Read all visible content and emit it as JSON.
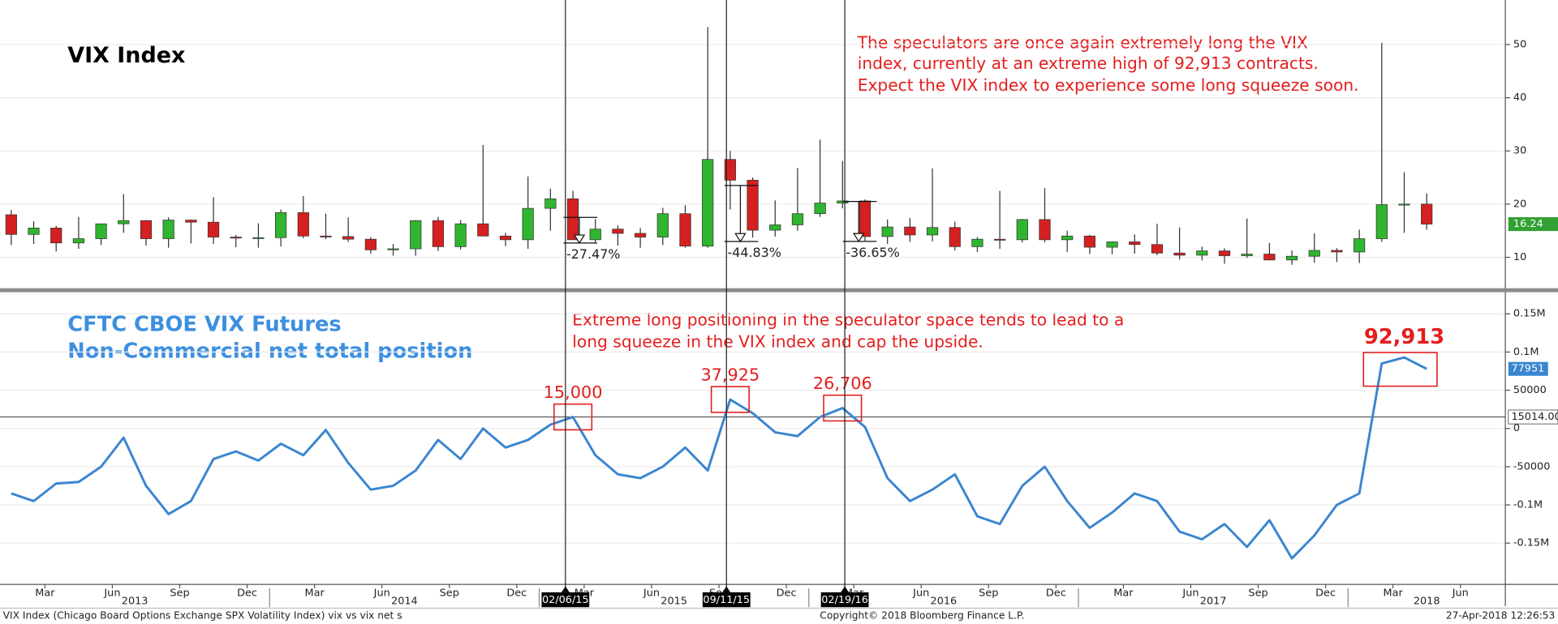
{
  "chart_data": [
    {
      "type": "candlestick",
      "title": "VIX Index",
      "annotation": [
        "The speculators are once again extremely long the VIX",
        "index, currently at an extreme high of 92,913 contracts.",
        "Expect the VIX index to experience some long squeeze soon."
      ],
      "x": [
        "2013-01",
        "2013-02",
        "2013-03",
        "2013-04",
        "2013-05",
        "2013-06",
        "2013-07",
        "2013-08",
        "2013-09",
        "2013-10",
        "2013-11",
        "2013-12",
        "2014-01",
        "2014-02",
        "2014-03",
        "2014-04",
        "2014-05",
        "2014-06",
        "2014-07",
        "2014-08",
        "2014-09",
        "2014-10",
        "2014-11",
        "2014-12",
        "2015-01",
        "2015-02",
        "2015-03",
        "2015-04",
        "2015-05",
        "2015-06",
        "2015-07",
        "2015-08",
        "2015-09",
        "2015-10",
        "2015-11",
        "2015-12",
        "2016-01",
        "2016-02",
        "2016-03",
        "2016-04",
        "2016-05",
        "2016-06",
        "2016-07",
        "2016-08",
        "2016-09",
        "2016-10",
        "2016-11",
        "2016-12",
        "2017-01",
        "2017-02",
        "2017-03",
        "2017-04",
        "2017-05",
        "2017-06",
        "2017-07",
        "2017-08",
        "2017-09",
        "2017-10",
        "2017-11",
        "2017-12",
        "2018-01",
        "2018-02",
        "2018-03",
        "2018-04"
      ],
      "open": [
        18.0,
        14.3,
        15.5,
        12.7,
        13.5,
        16.3,
        16.9,
        13.5,
        17.0,
        16.6,
        13.8,
        13.7,
        13.7,
        18.4,
        14.0,
        13.9,
        13.4,
        11.4,
        11.6,
        16.9,
        12.0,
        16.3,
        14.0,
        13.3,
        19.2,
        21.0,
        13.3,
        15.3,
        14.5,
        13.8,
        18.2,
        12.1,
        28.4,
        24.5,
        15.1,
        16.1,
        18.2,
        20.2,
        20.6,
        13.9,
        15.7,
        14.2,
        15.6,
        12.0,
        13.4,
        13.3,
        17.1,
        13.3,
        14.0,
        11.9,
        12.9,
        12.4,
        10.8,
        10.4,
        11.2,
        10.3,
        10.6,
        9.5,
        10.2,
        11.3,
        11.0,
        13.5,
        19.9,
        20.0
      ],
      "high": [
        18.9,
        16.8,
        15.9,
        17.6,
        16.3,
        21.9,
        17.0,
        17.5,
        17.1,
        21.3,
        14.2,
        16.4,
        19.0,
        21.5,
        18.2,
        17.5,
        13.8,
        12.5,
        17.0,
        17.6,
        17.0,
        31.1,
        14.6,
        25.2,
        22.9,
        22.5,
        17.2,
        16.0,
        15.5,
        19.3,
        19.8,
        53.3,
        30.0,
        25.0,
        20.7,
        26.8,
        32.1,
        28.1,
        20.9,
        17.1,
        17.4,
        26.7,
        16.7,
        13.8,
        22.5,
        17.2,
        23.0,
        15.0,
        14.2,
        13.0,
        14.3,
        16.3,
        15.6,
        12.0,
        11.7,
        17.3,
        12.7,
        11.3,
        14.5,
        11.7,
        15.2,
        50.3,
        26.0,
        22.0
      ],
      "low": [
        12.3,
        12.5,
        11.1,
        11.6,
        12.3,
        14.6,
        12.2,
        11.8,
        12.6,
        12.5,
        11.9,
        11.8,
        12.0,
        13.6,
        13.4,
        12.9,
        10.7,
        10.3,
        10.3,
        11.2,
        11.5,
        14.0,
        12.1,
        11.6,
        15.0,
        13.3,
        12.8,
        12.2,
        11.8,
        12.3,
        11.8,
        11.8,
        19.0,
        13.7,
        13.9,
        15.0,
        17.6,
        19.2,
        13.1,
        12.5,
        12.9,
        13.0,
        11.3,
        11.0,
        11.6,
        12.8,
        12.8,
        11.0,
        10.6,
        10.6,
        10.7,
        10.4,
        9.6,
        9.4,
        8.8,
        9.9,
        9.4,
        8.6,
        9.0,
        9.1,
        8.9,
        12.9,
        14.6,
        15.2
      ],
      "close": [
        14.3,
        15.5,
        12.7,
        13.5,
        16.3,
        16.9,
        13.5,
        17.0,
        16.6,
        13.8,
        13.7,
        13.7,
        18.4,
        14.0,
        13.9,
        13.4,
        11.4,
        11.6,
        16.9,
        12.0,
        16.3,
        14.0,
        13.3,
        19.2,
        21.0,
        13.3,
        15.3,
        14.5,
        13.8,
        18.2,
        12.1,
        28.4,
        24.5,
        15.1,
        16.1,
        18.2,
        20.2,
        20.6,
        13.9,
        15.7,
        14.2,
        15.6,
        12.0,
        13.4,
        13.3,
        17.1,
        13.3,
        14.0,
        11.9,
        12.9,
        12.4,
        10.8,
        10.4,
        11.2,
        10.3,
        10.6,
        9.5,
        10.2,
        11.3,
        11.0,
        13.5,
        19.9,
        20.0,
        16.24
      ],
      "up_color": "#2fb52f",
      "down_color": "#d42020",
      "last_color": "#33a033",
      "xlim": [
        "2013-01",
        "2018-08"
      ],
      "ylim": [
        4,
        58
      ],
      "yticks": [
        10,
        20,
        30,
        40,
        50
      ],
      "grid": true,
      "markers": [
        {
          "date": "02/06/15",
          "from": 17.5,
          "change": {
            "value": -27.47,
            "label": "-27.47%"
          }
        },
        {
          "date": "09/11/15",
          "from": 23.5,
          "change": {
            "value": -44.83,
            "label": "-44.83%"
          }
        },
        {
          "date": "02/19/16",
          "from": 20.5,
          "change": {
            "value": -36.65,
            "label": "-36.65%"
          }
        }
      ]
    },
    {
      "type": "line",
      "title": [
        "CFTC CBOE VIX Futures",
        "Non-Commercial net total position"
      ],
      "annotation": [
        "Extreme long positioning in the speculator space tends to lead to a",
        "long squeeze in the VIX index and cap the upside."
      ],
      "x": [
        "2013-01",
        "2013-02",
        "2013-03",
        "2013-04",
        "2013-05",
        "2013-06",
        "2013-07",
        "2013-08",
        "2013-09",
        "2013-10",
        "2013-11",
        "2013-12",
        "2014-01",
        "2014-02",
        "2014-03",
        "2014-04",
        "2014-05",
        "2014-06",
        "2014-07",
        "2014-08",
        "2014-09",
        "2014-10",
        "2014-11",
        "2014-12",
        "2015-01",
        "2015-02",
        "2015-03",
        "2015-04",
        "2015-05",
        "2015-06",
        "2015-07",
        "2015-08",
        "2015-09",
        "2015-10",
        "2015-11",
        "2015-12",
        "2016-01",
        "2016-02",
        "2016-03",
        "2016-04",
        "2016-05",
        "2016-06",
        "2016-07",
        "2016-08",
        "2016-09",
        "2016-10",
        "2016-11",
        "2016-12",
        "2017-01",
        "2017-02",
        "2017-03",
        "2017-04",
        "2017-05",
        "2017-06",
        "2017-07",
        "2017-08",
        "2017-09",
        "2017-10",
        "2017-11",
        "2017-12",
        "2018-01",
        "2018-02",
        "2018-03",
        "2018-04"
      ],
      "values": [
        -85000,
        -95000,
        -72000,
        -70000,
        -50000,
        -12000,
        -75000,
        -112000,
        -95000,
        -40000,
        -30000,
        -42000,
        -20000,
        -35000,
        -2000,
        -45000,
        -80000,
        -75000,
        -55000,
        -15000,
        -40000,
        0,
        -25000,
        -15000,
        5000,
        15000,
        -35000,
        -60000,
        -65000,
        -50000,
        -25000,
        -55000,
        37925,
        20000,
        -5000,
        -10000,
        15000,
        26706,
        2000,
        -65000,
        -95000,
        -80000,
        -60000,
        -115000,
        -125000,
        -75000,
        -50000,
        -95000,
        -130000,
        -110000,
        -85000,
        -95000,
        -135000,
        -145000,
        -125000,
        -155000,
        -120000,
        -170000,
        -140000,
        -100000,
        -85000,
        85000,
        92913,
        77951
      ],
      "color": "#3a85d0",
      "xlim": [
        "2013-01",
        "2018-08"
      ],
      "ylim": [
        -204000,
        177000
      ],
      "yticks": [
        {
          "value": 150000,
          "label": "0.15M"
        },
        {
          "value": 100000,
          "label": "0.1M"
        },
        50000,
        0,
        -50000,
        {
          "value": -100000,
          "label": "-0.1M"
        },
        {
          "value": -150000,
          "label": "-0.15M"
        }
      ],
      "grid": true,
      "hline": {
        "value": 15014,
        "label": "15014.00"
      },
      "callouts": [
        {
          "x": "2015-02",
          "label": "15,000"
        },
        {
          "x": "2015-09",
          "label": "37,925"
        },
        {
          "x": "2016-02",
          "label": "26,706"
        },
        {
          "x": "2018-03",
          "label": "92,913"
        }
      ],
      "xticks": [
        {
          "value": "2013-03",
          "label": "Mar"
        },
        {
          "value": "2013-06",
          "label": "Jun"
        },
        {
          "value": "2013-09",
          "label": "Sep"
        },
        {
          "value": "2013-12",
          "label": "Dec"
        },
        {
          "value": "2014-03",
          "label": "Mar"
        },
        {
          "value": "2014-06",
          "label": "Jun"
        },
        {
          "value": "2014-09",
          "label": "Sep"
        },
        {
          "value": "2014-12",
          "label": "Dec"
        },
        {
          "value": "2015-03",
          "label": "Mar"
        },
        {
          "value": "2015-06",
          "label": "Jun"
        },
        {
          "value": "2015-09",
          "label": "Sep"
        },
        {
          "value": "2015-12",
          "label": "Dec"
        },
        {
          "value": "2016-03",
          "label": "Mar"
        },
        {
          "value": "2016-06",
          "label": "Jun"
        },
        {
          "value": "2016-09",
          "label": "Sep"
        },
        {
          "value": "2016-12",
          "label": "Dec"
        },
        {
          "value": "2017-03",
          "label": "Mar"
        },
        {
          "value": "2017-06",
          "label": "Jun"
        },
        {
          "value": "2017-09",
          "label": "Sep"
        },
        {
          "value": "2017-12",
          "label": "Dec"
        },
        {
          "value": "2018-03",
          "label": "Mar"
        },
        {
          "value": "2018-06",
          "label": "Jun"
        }
      ],
      "year_labels": [
        2013,
        2014,
        2015,
        2016,
        2017,
        2018
      ]
    }
  ],
  "footer": {
    "left": "VIX Index (Chicago Board Options Exchange SPX Volatility Index) vix vs vix net s",
    "center": "Copyright© 2018 Bloomberg Finance L.P.",
    "right": "27-Apr-2018 12:26:53"
  }
}
